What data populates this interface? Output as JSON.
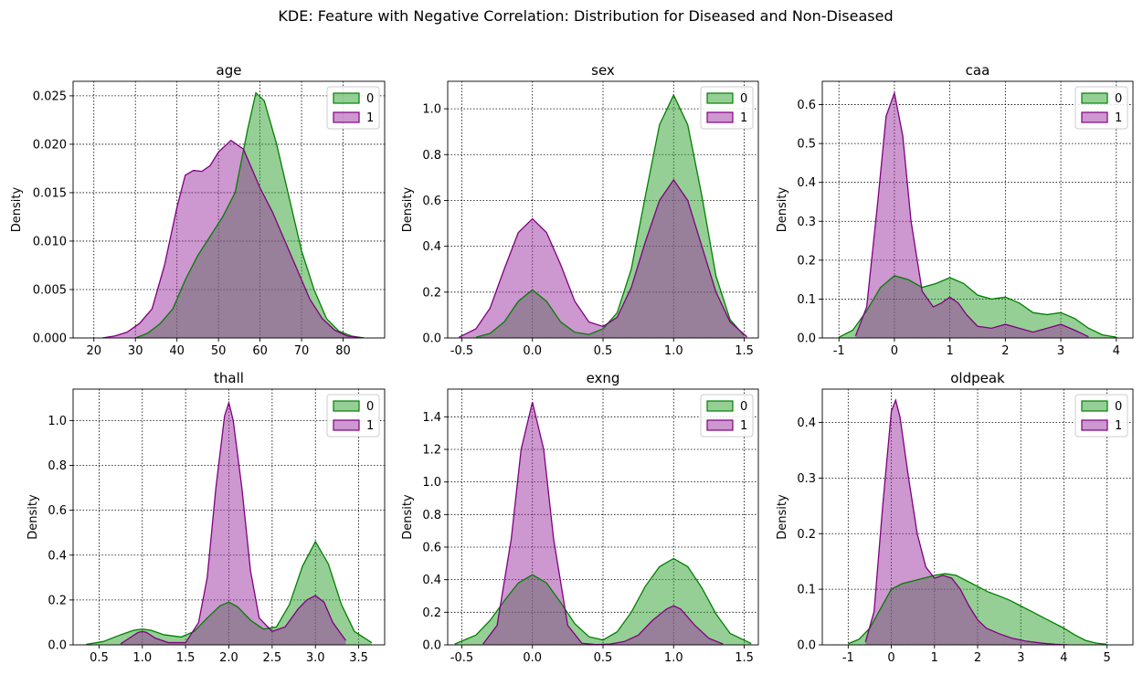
{
  "figure": {
    "suptitle": "KDE: Feature with Negative Correlation: Distribution for Diseased and Non-Diseased"
  },
  "colors": {
    "class_0_fill": "#2ca02c",
    "class_0_line": "#008000",
    "class_1_fill": "#9b30a0",
    "class_1_line": "#800080"
  },
  "chart_data": [
    {
      "type": "area",
      "title": "age",
      "xlabel": "",
      "ylabel": "Density",
      "xlim": [
        15,
        90
      ],
      "ylim": [
        0,
        0.0265
      ],
      "xticks": [
        20,
        30,
        40,
        50,
        60,
        70,
        80
      ],
      "yticks": [
        0.0,
        0.005,
        0.01,
        0.015,
        0.02,
        0.025
      ],
      "ytick_labels": [
        "0.000",
        "0.005",
        "0.010",
        "0.015",
        "0.020",
        "0.025"
      ],
      "grid": true,
      "legend": "top-right",
      "series": [
        {
          "name": "0",
          "x": [
            30,
            33,
            36,
            39,
            42,
            45,
            48,
            51,
            54,
            57,
            59,
            61,
            64,
            67,
            70,
            73,
            76,
            79,
            82,
            85
          ],
          "y": [
            0,
            0.0005,
            0.0015,
            0.003,
            0.006,
            0.0085,
            0.0105,
            0.0125,
            0.015,
            0.0215,
            0.0253,
            0.0245,
            0.02,
            0.0145,
            0.009,
            0.005,
            0.002,
            0.0007,
            0.0002,
            0
          ]
        },
        {
          "name": "1",
          "x": [
            22,
            25,
            28,
            31,
            34,
            37,
            40,
            42,
            44,
            46,
            48,
            50,
            53,
            56,
            58,
            60,
            63,
            66,
            69,
            72,
            75,
            78,
            81,
            85
          ],
          "y": [
            0,
            0.0002,
            0.0006,
            0.0015,
            0.003,
            0.0075,
            0.0135,
            0.0168,
            0.0173,
            0.0172,
            0.0178,
            0.0192,
            0.0204,
            0.0195,
            0.0175,
            0.0155,
            0.013,
            0.01,
            0.007,
            0.004,
            0.002,
            0.0008,
            0.0002,
            0
          ]
        }
      ]
    },
    {
      "type": "area",
      "title": "sex",
      "xlabel": "",
      "ylabel": "Density",
      "xlim": [
        -0.6,
        1.6
      ],
      "ylim": [
        0,
        1.12
      ],
      "xticks": [
        -0.5,
        0.0,
        0.5,
        1.0,
        1.5
      ],
      "yticks": [
        0.0,
        0.2,
        0.4,
        0.6,
        0.8,
        1.0
      ],
      "ytick_labels": [
        "0.0",
        "0.2",
        "0.4",
        "0.6",
        "0.8",
        "1.0"
      ],
      "grid": true,
      "legend": "top-right",
      "series": [
        {
          "name": "0",
          "x": [
            -0.4,
            -0.3,
            -0.2,
            -0.1,
            0,
            0.1,
            0.2,
            0.3,
            0.4,
            0.5,
            0.6,
            0.7,
            0.8,
            0.9,
            1.0,
            1.1,
            1.2,
            1.3,
            1.4,
            1.5
          ],
          "y": [
            0.003,
            0.02,
            0.07,
            0.16,
            0.21,
            0.16,
            0.07,
            0.025,
            0.015,
            0.04,
            0.11,
            0.3,
            0.62,
            0.93,
            1.06,
            0.93,
            0.62,
            0.27,
            0.08,
            0.01
          ]
        },
        {
          "name": "1",
          "x": [
            -0.52,
            -0.4,
            -0.3,
            -0.2,
            -0.1,
            0,
            0.1,
            0.2,
            0.3,
            0.4,
            0.5,
            0.6,
            0.7,
            0.8,
            0.9,
            1.0,
            1.1,
            1.2,
            1.3,
            1.4,
            1.52
          ],
          "y": [
            0.003,
            0.04,
            0.13,
            0.3,
            0.46,
            0.52,
            0.46,
            0.32,
            0.16,
            0.07,
            0.05,
            0.09,
            0.22,
            0.42,
            0.6,
            0.69,
            0.6,
            0.4,
            0.2,
            0.07,
            0.005
          ]
        }
      ]
    },
    {
      "type": "area",
      "title": "caa",
      "xlabel": "",
      "ylabel": "Density",
      "xlim": [
        -1.3,
        4.3
      ],
      "ylim": [
        0,
        0.66
      ],
      "xticks": [
        -1,
        0,
        1,
        2,
        3,
        4
      ],
      "yticks": [
        0.0,
        0.1,
        0.2,
        0.3,
        0.4,
        0.5,
        0.6
      ],
      "ytick_labels": [
        "0.0",
        "0.1",
        "0.2",
        "0.3",
        "0.4",
        "0.5",
        "0.6"
      ],
      "grid": true,
      "legend": "top-right",
      "series": [
        {
          "name": "0",
          "x": [
            -1,
            -0.75,
            -0.5,
            -0.25,
            0,
            0.25,
            0.5,
            0.75,
            1,
            1.25,
            1.5,
            1.75,
            2,
            2.25,
            2.5,
            2.75,
            3,
            3.25,
            3.5,
            3.75,
            4
          ],
          "y": [
            0.002,
            0.02,
            0.07,
            0.13,
            0.16,
            0.15,
            0.13,
            0.14,
            0.155,
            0.14,
            0.11,
            0.1,
            0.105,
            0.09,
            0.065,
            0.06,
            0.065,
            0.05,
            0.025,
            0.008,
            0.002
          ]
        },
        {
          "name": "1",
          "x": [
            -0.7,
            -0.5,
            -0.3,
            -0.15,
            0,
            0.15,
            0.3,
            0.5,
            0.7,
            0.85,
            1,
            1.15,
            1.3,
            1.5,
            1.75,
            2,
            2.25,
            2.5,
            2.75,
            3,
            3.25,
            3.5
          ],
          "y": [
            0.005,
            0.08,
            0.35,
            0.57,
            0.63,
            0.52,
            0.3,
            0.12,
            0.08,
            0.09,
            0.105,
            0.09,
            0.06,
            0.03,
            0.025,
            0.035,
            0.025,
            0.015,
            0.025,
            0.035,
            0.02,
            0.003
          ]
        }
      ]
    },
    {
      "type": "area",
      "title": "thall",
      "xlabel": "",
      "ylabel": "Density",
      "xlim": [
        0.2,
        3.8
      ],
      "ylim": [
        0,
        1.14
      ],
      "xticks": [
        0.5,
        1.0,
        1.5,
        2.0,
        2.5,
        3.0,
        3.5
      ],
      "yticks": [
        0.0,
        0.2,
        0.4,
        0.6,
        0.8,
        1.0
      ],
      "ytick_labels": [
        "0.0",
        "0.2",
        "0.4",
        "0.6",
        "0.8",
        "1.0"
      ],
      "grid": true,
      "legend": "top-right",
      "series": [
        {
          "name": "0",
          "x": [
            0.35,
            0.55,
            0.75,
            0.9,
            1.0,
            1.1,
            1.25,
            1.45,
            1.6,
            1.75,
            1.9,
            2.0,
            2.1,
            2.25,
            2.4,
            2.55,
            2.7,
            2.85,
            3.0,
            3.15,
            3.3,
            3.45,
            3.65
          ],
          "y": [
            0.002,
            0.015,
            0.045,
            0.065,
            0.07,
            0.065,
            0.045,
            0.035,
            0.06,
            0.12,
            0.175,
            0.19,
            0.17,
            0.11,
            0.07,
            0.08,
            0.18,
            0.35,
            0.46,
            0.36,
            0.18,
            0.06,
            0.01
          ]
        },
        {
          "name": "1",
          "x": [
            0.75,
            0.85,
            0.95,
            1.0,
            1.05,
            1.15,
            1.3,
            1.5,
            1.65,
            1.75,
            1.85,
            1.95,
            2.0,
            2.05,
            2.15,
            2.25,
            2.35,
            2.5,
            2.65,
            2.8,
            2.9,
            3.0,
            3.1,
            3.2,
            3.35
          ],
          "y": [
            0.005,
            0.03,
            0.055,
            0.06,
            0.055,
            0.03,
            0.01,
            0.01,
            0.1,
            0.3,
            0.7,
            1.02,
            1.08,
            1.0,
            0.7,
            0.33,
            0.12,
            0.06,
            0.08,
            0.16,
            0.2,
            0.22,
            0.19,
            0.1,
            0.02
          ]
        }
      ]
    },
    {
      "type": "area",
      "title": "exng",
      "xlabel": "",
      "ylabel": "Density",
      "xlim": [
        -0.6,
        1.6
      ],
      "ylim": [
        0,
        1.57
      ],
      "xticks": [
        -0.5,
        0.0,
        0.5,
        1.0,
        1.5
      ],
      "yticks": [
        0.0,
        0.2,
        0.4,
        0.6,
        0.8,
        1.0,
        1.2,
        1.4
      ],
      "ytick_labels": [
        "0.0",
        "0.2",
        "0.4",
        "0.6",
        "0.8",
        "1.0",
        "1.2",
        "1.4"
      ],
      "grid": true,
      "legend": "top-right",
      "series": [
        {
          "name": "0",
          "x": [
            -0.55,
            -0.4,
            -0.3,
            -0.2,
            -0.1,
            0,
            0.1,
            0.2,
            0.3,
            0.4,
            0.5,
            0.6,
            0.7,
            0.8,
            0.9,
            1.0,
            1.1,
            1.2,
            1.3,
            1.4,
            1.55
          ],
          "y": [
            0.005,
            0.06,
            0.15,
            0.27,
            0.38,
            0.43,
            0.38,
            0.26,
            0.13,
            0.05,
            0.03,
            0.08,
            0.2,
            0.36,
            0.48,
            0.53,
            0.48,
            0.35,
            0.19,
            0.07,
            0.008
          ]
        },
        {
          "name": "1",
          "x": [
            -0.35,
            -0.25,
            -0.15,
            -0.08,
            0,
            0.08,
            0.15,
            0.25,
            0.35,
            0.45,
            0.55,
            0.65,
            0.75,
            0.85,
            0.95,
            1.0,
            1.05,
            1.15,
            1.25,
            1.35
          ],
          "y": [
            0.005,
            0.12,
            0.65,
            1.2,
            1.49,
            1.2,
            0.65,
            0.12,
            0.01,
            0.002,
            0.005,
            0.02,
            0.06,
            0.15,
            0.22,
            0.24,
            0.22,
            0.12,
            0.04,
            0.005
          ]
        }
      ]
    },
    {
      "type": "area",
      "title": "oldpeak",
      "xlabel": "",
      "ylabel": "Density",
      "xlim": [
        -1.6,
        5.6
      ],
      "ylim": [
        0,
        0.46
      ],
      "xticks": [
        -1,
        0,
        1,
        2,
        3,
        4,
        5
      ],
      "yticks": [
        0.0,
        0.1,
        0.2,
        0.3,
        0.4
      ],
      "ytick_labels": [
        "0.0",
        "0.1",
        "0.2",
        "0.3",
        "0.4"
      ],
      "grid": true,
      "legend": "top-right",
      "series": [
        {
          "name": "0",
          "x": [
            -1,
            -0.75,
            -0.5,
            -0.25,
            0,
            0.25,
            0.5,
            0.75,
            1,
            1.25,
            1.5,
            1.75,
            2,
            2.25,
            2.5,
            2.75,
            3,
            3.25,
            3.5,
            3.75,
            4,
            4.25,
            4.5,
            4.75,
            5
          ],
          "y": [
            0.002,
            0.01,
            0.03,
            0.065,
            0.1,
            0.11,
            0.115,
            0.12,
            0.125,
            0.128,
            0.125,
            0.115,
            0.105,
            0.095,
            0.088,
            0.08,
            0.07,
            0.06,
            0.05,
            0.04,
            0.03,
            0.018,
            0.008,
            0.003,
            0.001
          ]
        },
        {
          "name": "1",
          "x": [
            -0.6,
            -0.4,
            -0.2,
            0,
            0.1,
            0.2,
            0.4,
            0.6,
            0.8,
            1.0,
            1.2,
            1.4,
            1.6,
            1.8,
            2.0,
            2.2,
            2.5,
            2.8,
            3.1,
            3.5,
            3.8,
            4.1
          ],
          "y": [
            0.005,
            0.06,
            0.25,
            0.42,
            0.44,
            0.41,
            0.3,
            0.2,
            0.14,
            0.12,
            0.125,
            0.12,
            0.1,
            0.07,
            0.045,
            0.03,
            0.02,
            0.012,
            0.007,
            0.003,
            0.001,
            0
          ]
        }
      ]
    }
  ]
}
